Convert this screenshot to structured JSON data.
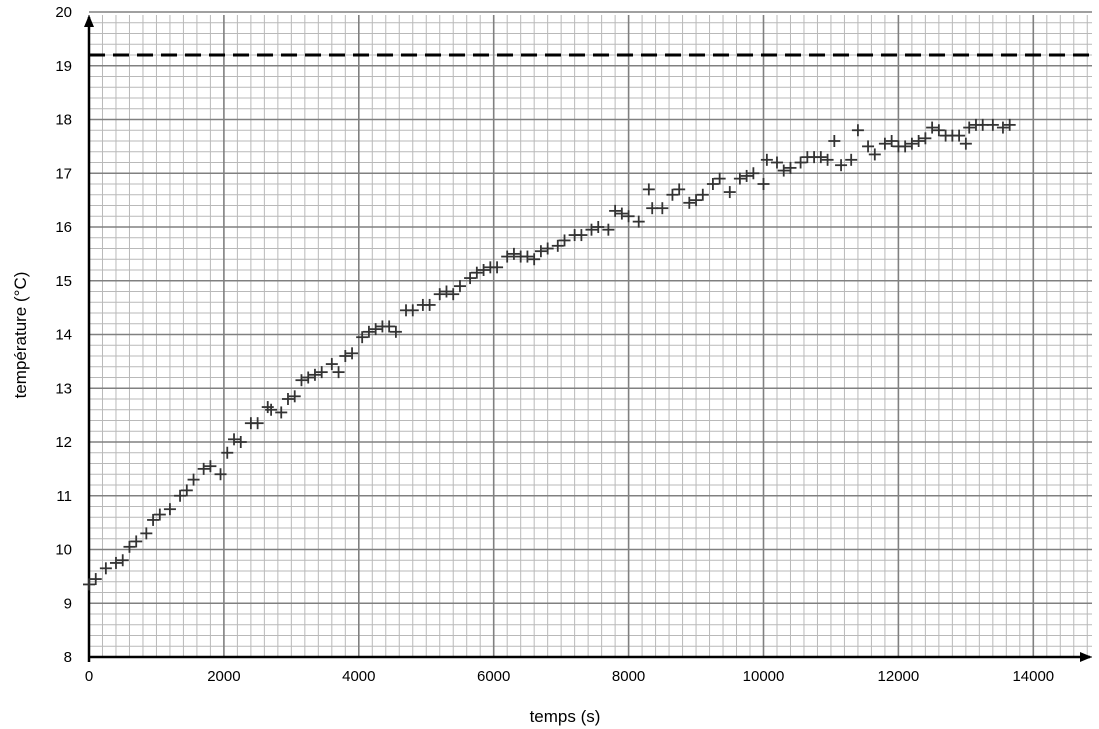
{
  "chart_data": {
    "type": "scatter",
    "title": "",
    "xlabel": "temps (s)",
    "ylabel": "température (°C)",
    "xlim": [
      0,
      15000
    ],
    "ylim": [
      8,
      20
    ],
    "x_ticks": [
      0,
      2000,
      4000,
      6000,
      8000,
      10000,
      12000,
      14000
    ],
    "y_ticks": [
      8,
      9,
      10,
      11,
      12,
      13,
      14,
      15,
      16,
      17,
      18,
      19,
      20
    ],
    "grid": true,
    "marker": "plus",
    "marker_color": "#333333",
    "asymptote": {
      "y": 19.2,
      "style": "dashed"
    },
    "points": [
      [
        0,
        9.35
      ],
      [
        100,
        9.45
      ],
      [
        250,
        9.65
      ],
      [
        400,
        9.75
      ],
      [
        500,
        9.8
      ],
      [
        600,
        10.05
      ],
      [
        700,
        10.15
      ],
      [
        850,
        10.3
      ],
      [
        950,
        10.55
      ],
      [
        1050,
        10.65
      ],
      [
        1200,
        10.75
      ],
      [
        1350,
        11.0
      ],
      [
        1450,
        11.1
      ],
      [
        1550,
        11.3
      ],
      [
        1700,
        11.5
      ],
      [
        1800,
        11.55
      ],
      [
        1950,
        11.4
      ],
      [
        2050,
        11.8
      ],
      [
        2150,
        12.05
      ],
      [
        2250,
        12.0
      ],
      [
        2400,
        12.35
      ],
      [
        2500,
        12.35
      ],
      [
        2650,
        12.65
      ],
      [
        2700,
        12.6
      ],
      [
        2850,
        12.55
      ],
      [
        2950,
        12.8
      ],
      [
        3050,
        12.85
      ],
      [
        3150,
        13.15
      ],
      [
        3250,
        13.2
      ],
      [
        3350,
        13.25
      ],
      [
        3450,
        13.3
      ],
      [
        3600,
        13.45
      ],
      [
        3700,
        13.3
      ],
      [
        3800,
        13.6
      ],
      [
        3900,
        13.65
      ],
      [
        4050,
        13.95
      ],
      [
        4150,
        14.05
      ],
      [
        4250,
        14.1
      ],
      [
        4350,
        14.15
      ],
      [
        4450,
        14.15
      ],
      [
        4550,
        14.05
      ],
      [
        4700,
        14.45
      ],
      [
        4800,
        14.45
      ],
      [
        4950,
        14.55
      ],
      [
        5050,
        14.55
      ],
      [
        5200,
        14.75
      ],
      [
        5300,
        14.8
      ],
      [
        5400,
        14.75
      ],
      [
        5500,
        14.9
      ],
      [
        5650,
        15.05
      ],
      [
        5750,
        15.15
      ],
      [
        5850,
        15.2
      ],
      [
        5950,
        15.25
      ],
      [
        6050,
        15.25
      ],
      [
        6200,
        15.45
      ],
      [
        6300,
        15.5
      ],
      [
        6400,
        15.45
      ],
      [
        6500,
        15.45
      ],
      [
        6600,
        15.4
      ],
      [
        6700,
        15.55
      ],
      [
        6800,
        15.6
      ],
      [
        6950,
        15.65
      ],
      [
        7050,
        15.75
      ],
      [
        7200,
        15.85
      ],
      [
        7300,
        15.85
      ],
      [
        7450,
        15.95
      ],
      [
        7550,
        16.0
      ],
      [
        7700,
        15.95
      ],
      [
        7800,
        16.3
      ],
      [
        7900,
        16.25
      ],
      [
        8000,
        16.2
      ],
      [
        8150,
        16.1
      ],
      [
        8300,
        16.7
      ],
      [
        8350,
        16.35
      ],
      [
        8500,
        16.35
      ],
      [
        8650,
        16.6
      ],
      [
        8750,
        16.7
      ],
      [
        8900,
        16.45
      ],
      [
        9000,
        16.5
      ],
      [
        9100,
        16.6
      ],
      [
        9250,
        16.8
      ],
      [
        9350,
        16.9
      ],
      [
        9500,
        16.65
      ],
      [
        9650,
        16.9
      ],
      [
        9750,
        16.95
      ],
      [
        9850,
        17.0
      ],
      [
        10000,
        16.8
      ],
      [
        10050,
        17.25
      ],
      [
        10200,
        17.2
      ],
      [
        10300,
        17.05
      ],
      [
        10400,
        17.1
      ],
      [
        10550,
        17.2
      ],
      [
        10650,
        17.3
      ],
      [
        10750,
        17.3
      ],
      [
        10850,
        17.3
      ],
      [
        10950,
        17.25
      ],
      [
        11050,
        17.6
      ],
      [
        11150,
        17.15
      ],
      [
        11300,
        17.25
      ],
      [
        11400,
        17.8
      ],
      [
        11550,
        17.5
      ],
      [
        11650,
        17.35
      ],
      [
        11800,
        17.55
      ],
      [
        11900,
        17.6
      ],
      [
        12000,
        17.5
      ],
      [
        12100,
        17.5
      ],
      [
        12200,
        17.55
      ],
      [
        12300,
        17.6
      ],
      [
        12400,
        17.65
      ],
      [
        12500,
        17.85
      ],
      [
        12600,
        17.8
      ],
      [
        12700,
        17.7
      ],
      [
        12800,
        17.7
      ],
      [
        12900,
        17.7
      ],
      [
        13000,
        17.55
      ],
      [
        13050,
        17.85
      ],
      [
        13150,
        17.9
      ],
      [
        13250,
        17.9
      ],
      [
        13400,
        17.9
      ],
      [
        13550,
        17.85
      ],
      [
        13650,
        17.9
      ]
    ]
  }
}
